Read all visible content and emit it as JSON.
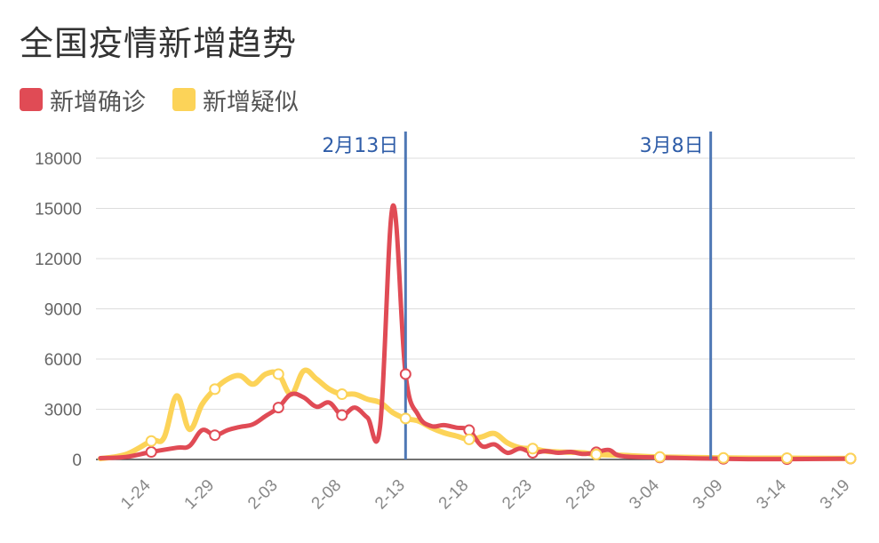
{
  "title": "全国疫情新增趋势",
  "colors": {
    "confirmed": "#e04b55",
    "suspected": "#fcd358",
    "marker": "#4f78b5",
    "grid": "#dddddd",
    "axis": "#444444"
  },
  "chart_data": {
    "type": "line",
    "title": "全国疫情新增趋势",
    "xlabel": "",
    "ylabel": "",
    "x_ticks": [
      "1-24",
      "1-29",
      "2-03",
      "2-08",
      "2-13",
      "2-18",
      "2-23",
      "2-28",
      "3-04",
      "3-09",
      "3-14",
      "3-19"
    ],
    "y_ticks": [
      0,
      3000,
      6000,
      9000,
      12000,
      15000,
      18000
    ],
    "ylim": [
      0,
      18000
    ],
    "x_range": [
      "1-20",
      "3-19"
    ],
    "grid": true,
    "legend_position": "top-left",
    "series": [
      {
        "name": "新增确诊",
        "color": "#e04b55",
        "points": [
          [
            "1-20",
            80
          ],
          [
            "1-22",
            150
          ],
          [
            "1-24",
            450
          ],
          [
            "1-26",
            700
          ],
          [
            "1-27",
            800
          ],
          [
            "1-28",
            1750
          ],
          [
            "1-29",
            1450
          ],
          [
            "1-30",
            1750
          ],
          [
            "1-31",
            1950
          ],
          [
            "2-01",
            2100
          ],
          [
            "2-02",
            2600
          ],
          [
            "2-03",
            3100
          ],
          [
            "2-04",
            3900
          ],
          [
            "2-05",
            3700
          ],
          [
            "2-06",
            3150
          ],
          [
            "2-07",
            3400
          ],
          [
            "2-08",
            2650
          ],
          [
            "2-09",
            3100
          ],
          [
            "2-10",
            2500
          ],
          [
            "2-11",
            2000
          ],
          [
            "2-12",
            15150
          ],
          [
            "2-13",
            5100
          ],
          [
            "2-14",
            2650
          ],
          [
            "2-15",
            2000
          ],
          [
            "2-16",
            2050
          ],
          [
            "2-17",
            1900
          ],
          [
            "2-18",
            1750
          ],
          [
            "2-19",
            800
          ],
          [
            "2-20",
            900
          ],
          [
            "2-21",
            400
          ],
          [
            "2-22",
            650
          ],
          [
            "2-23",
            400
          ],
          [
            "2-24",
            500
          ],
          [
            "2-25",
            400
          ],
          [
            "2-26",
            450
          ],
          [
            "2-27",
            330
          ],
          [
            "2-28",
            430
          ],
          [
            "2-29",
            570
          ],
          [
            "3-01",
            200
          ],
          [
            "3-04",
            120
          ],
          [
            "3-09",
            40
          ],
          [
            "3-14",
            20
          ],
          [
            "3-19",
            50
          ]
        ],
        "labeled_points": [
          "1-24",
          "1-29",
          "2-03",
          "2-08",
          "2-13",
          "2-18",
          "2-23",
          "2-28",
          "3-04",
          "3-09",
          "3-14",
          "3-19"
        ]
      },
      {
        "name": "新增疑似",
        "color": "#fcd358",
        "points": [
          [
            "1-20",
            50
          ],
          [
            "1-22",
            300
          ],
          [
            "1-24",
            1100
          ],
          [
            "1-25",
            1300
          ],
          [
            "1-26",
            3800
          ],
          [
            "1-27",
            1800
          ],
          [
            "1-28",
            3300
          ],
          [
            "1-29",
            4200
          ],
          [
            "1-30",
            4800
          ],
          [
            "1-31",
            5000
          ],
          [
            "2-01",
            4500
          ],
          [
            "2-02",
            5100
          ],
          [
            "2-03",
            5100
          ],
          [
            "2-04",
            3900
          ],
          [
            "2-05",
            5300
          ],
          [
            "2-06",
            4800
          ],
          [
            "2-07",
            4200
          ],
          [
            "2-08",
            3900
          ],
          [
            "2-09",
            3900
          ],
          [
            "2-10",
            3600
          ],
          [
            "2-11",
            3400
          ],
          [
            "2-12",
            2800
          ],
          [
            "2-13",
            2450
          ],
          [
            "2-14",
            2300
          ],
          [
            "2-15",
            1900
          ],
          [
            "2-16",
            1600
          ],
          [
            "2-17",
            1400
          ],
          [
            "2-18",
            1200
          ],
          [
            "2-19",
            1350
          ],
          [
            "2-20",
            1550
          ],
          [
            "2-21",
            1000
          ],
          [
            "2-22",
            700
          ],
          [
            "2-23",
            650
          ],
          [
            "2-24",
            500
          ],
          [
            "2-25",
            450
          ],
          [
            "2-26",
            430
          ],
          [
            "2-27",
            400
          ],
          [
            "2-28",
            300
          ],
          [
            "3-01",
            250
          ],
          [
            "3-04",
            150
          ],
          [
            "3-09",
            90
          ],
          [
            "3-14",
            80
          ],
          [
            "3-19",
            60
          ]
        ],
        "labeled_points": [
          "1-24",
          "1-29",
          "2-03",
          "2-08",
          "2-13",
          "2-18",
          "2-23",
          "2-28",
          "3-04",
          "3-09",
          "3-14",
          "3-19"
        ]
      }
    ],
    "annotations": [
      {
        "label": "2月13日",
        "x": "2-13"
      },
      {
        "label": "3月8日",
        "x": "3-08"
      }
    ]
  }
}
